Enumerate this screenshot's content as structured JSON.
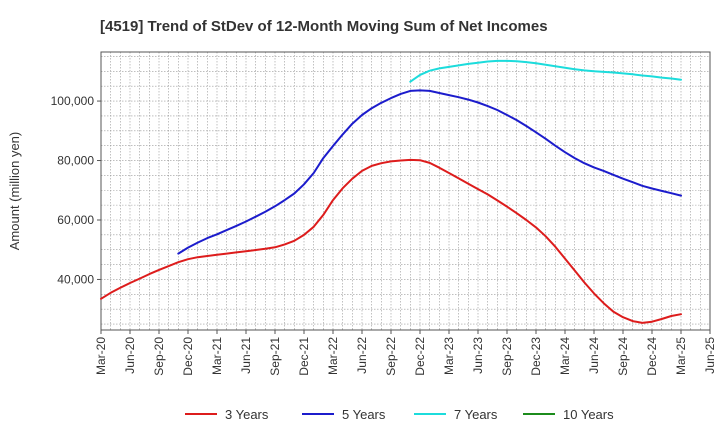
{
  "chart_data": {
    "type": "line",
    "title": "[4519]  Trend of StDev of 12-Month Moving Sum of Net Incomes",
    "ylabel": "Amount (million yen)",
    "xlabel": "",
    "x_tick_labels": [
      "Mar-20",
      "Jun-20",
      "Sep-20",
      "Dec-20",
      "Mar-21",
      "Jun-21",
      "Sep-21",
      "Dec-21",
      "Mar-22",
      "Jun-22",
      "Sep-22",
      "Dec-22",
      "Mar-23",
      "Jun-23",
      "Sep-23",
      "Dec-23",
      "Mar-24",
      "Jun-24",
      "Sep-24",
      "Dec-24",
      "Mar-25",
      "Jun-25"
    ],
    "y_tick_labels": [
      "40,000",
      "60,000",
      "80,000",
      "100,000"
    ],
    "y_ticks": [
      40000,
      60000,
      80000,
      100000
    ],
    "ylim": [
      23000,
      116500
    ],
    "x_range_months": [
      0,
      63
    ],
    "grid": true,
    "legend_position": "bottom",
    "series": [
      {
        "name": "3 Years",
        "color": "#dd1c1c",
        "x": [
          0,
          1,
          2,
          3,
          4,
          5,
          6,
          7,
          8,
          9,
          10,
          11,
          12,
          13,
          14,
          15,
          16,
          17,
          18,
          19,
          20,
          21,
          22,
          23,
          24,
          25,
          26,
          27,
          28,
          29,
          30,
          31,
          32,
          33,
          34,
          35,
          36,
          37,
          38,
          39,
          40,
          41,
          42,
          43,
          44,
          45,
          46,
          47,
          48,
          49,
          50,
          51,
          52,
          53,
          54,
          55,
          56,
          57,
          58,
          59,
          60
        ],
        "y": [
          33500,
          35500,
          37200,
          38800,
          40300,
          41800,
          43200,
          44500,
          45800,
          46800,
          47500,
          47900,
          48300,
          48700,
          49100,
          49500,
          49900,
          50300,
          50800,
          51800,
          53000,
          55000,
          57700,
          61700,
          66700,
          70700,
          73900,
          76500,
          78200,
          79100,
          79700,
          80000,
          80200,
          80100,
          79200,
          77600,
          75800,
          74000,
          72200,
          70400,
          68600,
          66600,
          64500,
          62300,
          60000,
          57500,
          54500,
          51000,
          47000,
          43000,
          39000,
          35300,
          32000,
          29200,
          27300,
          26000,
          25400,
          25800,
          26700,
          27700,
          28300
        ]
      },
      {
        "name": "5 Years",
        "color": "#1c1ccc",
        "x": [
          8,
          9,
          10,
          11,
          12,
          13,
          14,
          15,
          16,
          17,
          18,
          19,
          20,
          21,
          22,
          23,
          24,
          25,
          26,
          27,
          28,
          29,
          30,
          31,
          32,
          33,
          34,
          35,
          36,
          37,
          38,
          39,
          40,
          41,
          42,
          43,
          44,
          45,
          46,
          47,
          48,
          49,
          50,
          51,
          52,
          53,
          54,
          55,
          56,
          57,
          58,
          59,
          60
        ],
        "y": [
          48700,
          50700,
          52400,
          53900,
          55200,
          56600,
          58000,
          59500,
          61100,
          62800,
          64600,
          66700,
          68900,
          72000,
          75800,
          80800,
          84900,
          88800,
          92400,
          95300,
          97600,
          99400,
          101000,
          102400,
          103400,
          103600,
          103400,
          102700,
          102000,
          101300,
          100500,
          99500,
          98300,
          97000,
          95300,
          93600,
          91600,
          89500,
          87300,
          85000,
          82800,
          80800,
          79100,
          77700,
          76500,
          75200,
          73900,
          72700,
          71500,
          70600,
          69800,
          69000,
          68200
        ]
      },
      {
        "name": "7 Years",
        "color": "#1cdcdc",
        "x": [
          32,
          33,
          34,
          35,
          36,
          37,
          38,
          39,
          40,
          41,
          42,
          43,
          44,
          45,
          46,
          47,
          48,
          49,
          50,
          51,
          52,
          53,
          54,
          55,
          56,
          57,
          58,
          59,
          60
        ],
        "y": [
          106500,
          108800,
          110200,
          111000,
          111500,
          112000,
          112500,
          112900,
          113300,
          113500,
          113500,
          113400,
          113100,
          112700,
          112200,
          111700,
          111200,
          110700,
          110300,
          110000,
          109800,
          109600,
          109300,
          109000,
          108600,
          108300,
          107900,
          107600,
          107200
        ]
      },
      {
        "name": "10 Years",
        "color": "#1c8c1c",
        "x": [],
        "y": []
      }
    ]
  }
}
